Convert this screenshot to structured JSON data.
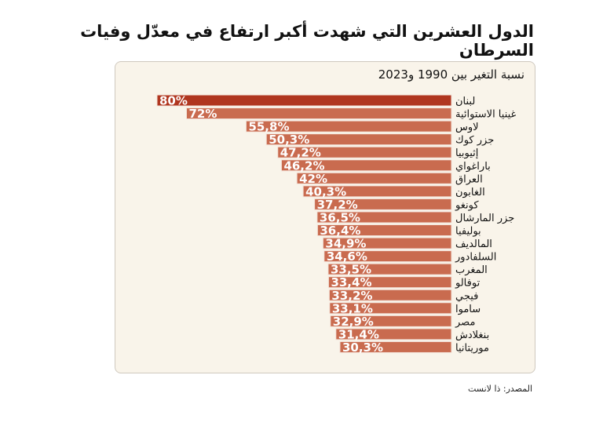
{
  "title": "الدول العشرين التي شهدت أكبر ارتفاع في معدّل وفيات السرطان",
  "source": "المصدر: ذا لانست",
  "chart_data": {
    "type": "bar",
    "orientation": "horizontal",
    "subtitle": "نسبة التغير بين 1990 و2023",
    "categories": [
      "لبنان",
      "غينيا الاستوائية",
      "لاوس",
      "جزر كوك",
      "إثيوبيا",
      "باراغواي",
      "العراق",
      "الغابون",
      "كونغو",
      "جزر المارشال",
      "بوليفيا",
      "المالديف",
      "السلفادور",
      "المغرب",
      "توفالو",
      "فيجي",
      "ساموا",
      "مصر",
      "بنغلادش",
      "موريتانيا"
    ],
    "values": [
      80,
      72,
      55.8,
      50.3,
      47.2,
      46.2,
      42,
      40.3,
      37.2,
      36.5,
      36.4,
      34.9,
      34.6,
      33.5,
      33.4,
      33.2,
      33.1,
      32.9,
      31.4,
      30.3
    ],
    "labels": [
      "80%",
      "72%",
      "55,8%",
      "50,3%",
      "47,2%",
      "46,2%",
      "42%",
      "40,3%",
      "37,2%",
      "36,5%",
      "36,4%",
      "34,9%",
      "34,6%",
      "33,5%",
      "33,4%",
      "33,2%",
      "33,1%",
      "32,9%",
      "31,4%",
      "30,3%"
    ],
    "unit": "%",
    "colors": {
      "highlight": "#b0361f",
      "default": "#c96b4f",
      "label": "#ffffff"
    },
    "grid": false
  }
}
